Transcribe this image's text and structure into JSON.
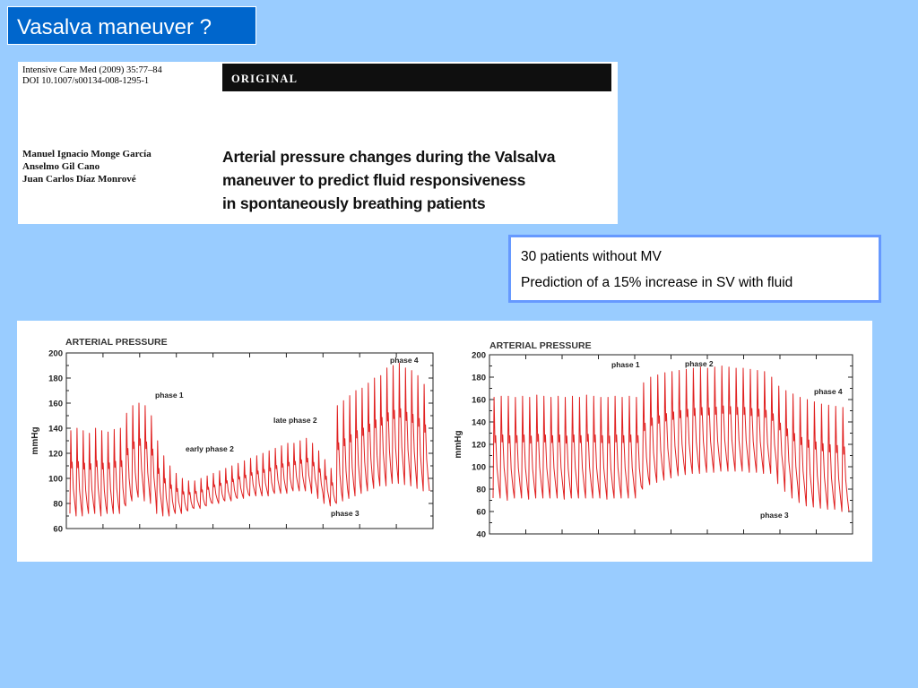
{
  "slide": {
    "title": "Vasalva maneuver ?"
  },
  "paper": {
    "journal_line": "Intensive Care Med (2009) 35:77–84",
    "doi_line": "DOI 10.1007/s00134-008-1295-1",
    "section_label": "ORIGINAL",
    "authors": [
      "Manuel Ignacio Monge García",
      "Anselmo Gil Cano",
      "Juan Carlos Díaz Monrové"
    ],
    "title_lines": [
      "Arterial pressure changes during the Valsalva",
      "maneuver to predict fluid responsiveness",
      "in spontaneously breathing patients"
    ]
  },
  "info": {
    "line1": "30 patients without MV",
    "line2": "Prediction of a 15% increase in SV with fluid"
  },
  "colors": {
    "background": "#99CCFF",
    "title_box": "#0066CC",
    "info_border": "#6699FF",
    "trace": "#E02020"
  },
  "chart_data": [
    {
      "type": "line",
      "title": "ARTERIAL PRESSURE",
      "ylabel": "mmHg",
      "ylim": [
        60,
        200
      ],
      "yticks": [
        60,
        80,
        100,
        120,
        140,
        160,
        180,
        200
      ],
      "annotations": [
        "phase 1",
        "early phase 2",
        "late phase 2",
        "phase 3",
        "phase 4"
      ],
      "series": [
        {
          "beats_systolic": [
            138,
            140,
            138,
            136,
            140,
            138,
            137,
            139,
            140,
            152,
            158,
            160,
            158,
            150,
            130,
            118,
            110,
            104,
            100,
            98,
            98,
            100,
            102,
            104,
            106,
            108,
            110,
            112,
            114,
            116,
            118,
            120,
            122,
            124,
            126,
            128,
            128,
            130,
            132,
            128,
            122,
            115,
            108,
            158,
            162,
            166,
            170,
            172,
            176,
            180,
            182,
            188,
            190,
            192,
            188,
            186,
            182,
            175
          ],
          "beats_diastolic": [
            72,
            70,
            70,
            72,
            72,
            70,
            72,
            72,
            72,
            78,
            82,
            85,
            82,
            80,
            72,
            70,
            70,
            72,
            72,
            74,
            76,
            76,
            78,
            80,
            80,
            82,
            82,
            84,
            84,
            86,
            86,
            86,
            86,
            88,
            88,
            88,
            90,
            90,
            90,
            88,
            84,
            80,
            78,
            80,
            82,
            84,
            86,
            88,
            90,
            92,
            94,
            94,
            96,
            96,
            95,
            94,
            92,
            90
          ]
        }
      ]
    },
    {
      "type": "line",
      "title": "ARTERIAL PRESSURE",
      "ylabel": "mmHg",
      "ylim": [
        40,
        200
      ],
      "yticks": [
        40,
        60,
        80,
        100,
        120,
        140,
        160,
        180,
        200
      ],
      "annotations": [
        "phase 1",
        "phase 2",
        "phase 4",
        "phase 3"
      ],
      "series": [
        {
          "beats_systolic": [
            162,
            163,
            163,
            162,
            163,
            162,
            164,
            163,
            162,
            163,
            162,
            163,
            162,
            164,
            163,
            162,
            162,
            163,
            162,
            163,
            162,
            175,
            180,
            182,
            184,
            185,
            186,
            187,
            188,
            189,
            188,
            189,
            190,
            189,
            188,
            188,
            187,
            186,
            185,
            180,
            172,
            168,
            165,
            162,
            160,
            158,
            156,
            155,
            154,
            153
          ],
          "beats_diastolic": [
            72,
            72,
            70,
            72,
            72,
            71,
            72,
            72,
            72,
            72,
            71,
            72,
            72,
            72,
            72,
            72,
            71,
            72,
            72,
            72,
            72,
            80,
            84,
            86,
            88,
            90,
            92,
            93,
            94,
            94,
            95,
            95,
            96,
            96,
            96,
            96,
            95,
            95,
            94,
            94,
            85,
            78,
            72,
            68,
            65,
            64,
            63,
            62,
            62,
            60
          ]
        }
      ]
    }
  ]
}
